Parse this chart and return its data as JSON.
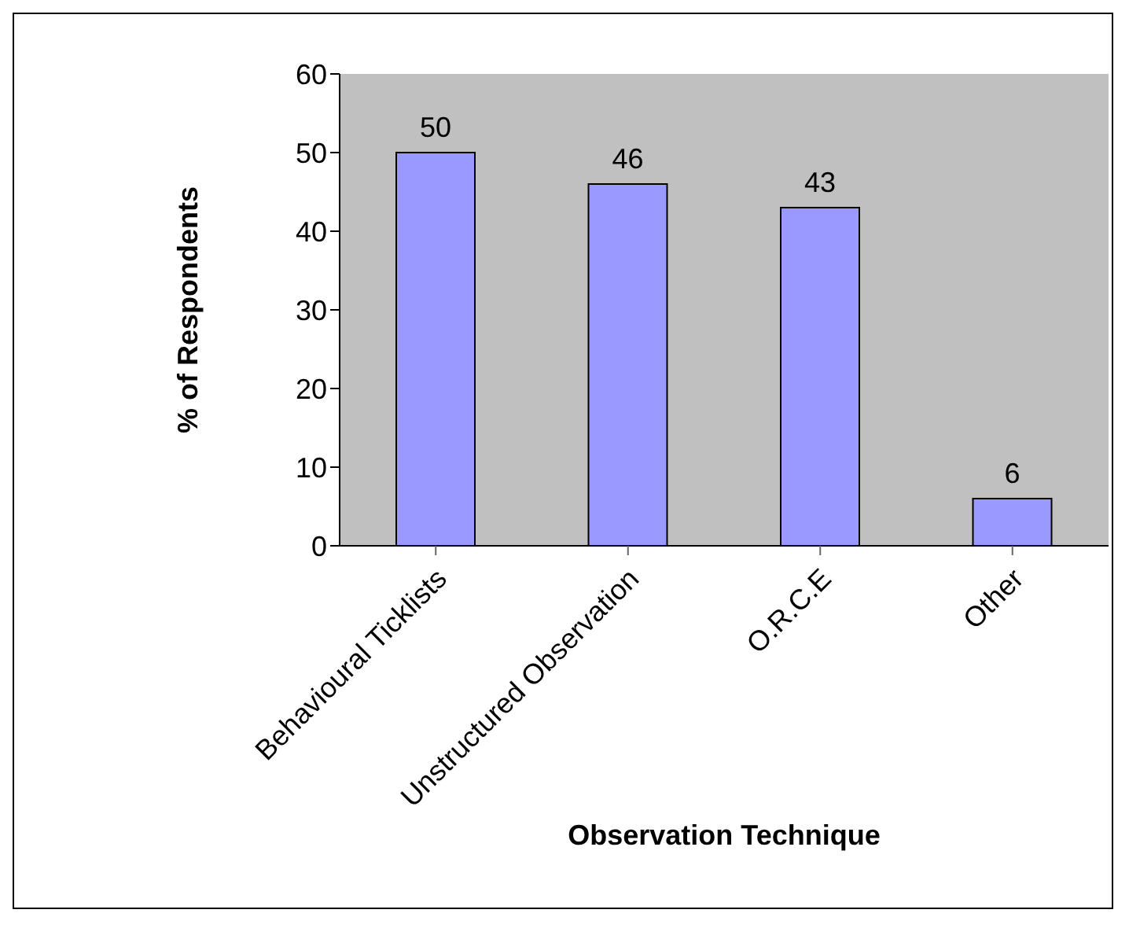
{
  "chart_data": {
    "type": "bar",
    "xlabel": "Observation Technique",
    "ylabel": "% of Respondents",
    "categories": [
      "Behavioural Ticklists",
      "Unstructured Observation",
      "O.R.C.E",
      "Other"
    ],
    "values": [
      50,
      46,
      43,
      6
    ],
    "color": "#9999ff",
    "ylim": [
      0,
      60
    ],
    "yticks": [
      0,
      10,
      20,
      30,
      40,
      50,
      60
    ],
    "grid": false,
    "data_labels": true
  }
}
